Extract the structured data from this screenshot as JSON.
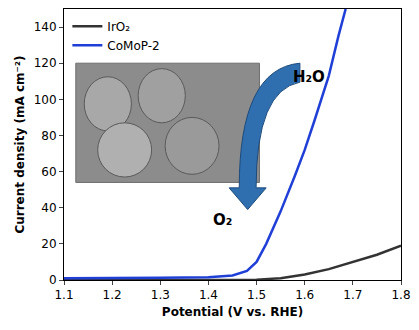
{
  "chart_data": {
    "type": "line",
    "x_label": "Potential (V vs. RHE)",
    "y_label": "Current density (mA cm⁻²)",
    "xlim": [
      1.1,
      1.8
    ],
    "xticks": [
      1.1,
      1.2,
      1.3,
      1.4,
      1.5,
      1.6,
      1.7,
      1.8
    ],
    "ylim": [
      0,
      150
    ],
    "yticks": [
      0,
      20,
      40,
      60,
      80,
      100,
      120,
      140
    ],
    "grid": false,
    "legend": "upper left",
    "annotations": [
      "H₂O",
      "O₂"
    ],
    "series": [
      {
        "name": "IrO₂",
        "color": "#333333",
        "x": [
          1.1,
          1.2,
          1.3,
          1.4,
          1.5,
          1.55,
          1.6,
          1.65,
          1.7,
          1.75,
          1.8
        ],
        "values": [
          0,
          0,
          0,
          0,
          0.2,
          1,
          3,
          6,
          10,
          14,
          19
        ]
      },
      {
        "name": "CoMoP-2",
        "color": "#1f3fd6",
        "x": [
          1.1,
          1.2,
          1.3,
          1.4,
          1.45,
          1.48,
          1.5,
          1.52,
          1.55,
          1.58,
          1.6,
          1.62,
          1.65,
          1.67,
          1.685
        ],
        "values": [
          1,
          1,
          1.2,
          1.5,
          2.5,
          5,
          10,
          20,
          38,
          58,
          72,
          88,
          113,
          135,
          150
        ]
      }
    ]
  }
}
